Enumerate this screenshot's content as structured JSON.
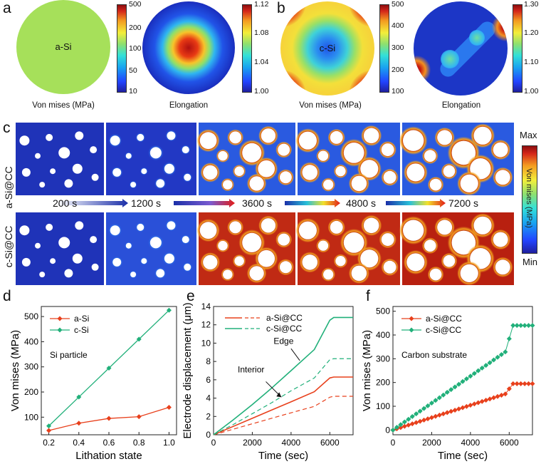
{
  "panel_labels": {
    "a": "a",
    "b": "b",
    "c": "c",
    "d": "d",
    "e": "e",
    "f": "f"
  },
  "panel_a": {
    "circle_label": "a-Si",
    "left_caption": "Von mises (MPa)",
    "right_caption": "Elongation",
    "left_ticks": [
      "500",
      "200",
      "100",
      "50",
      "10"
    ],
    "right_ticks": [
      "1.12",
      "1.08",
      "1.04",
      "1.00"
    ]
  },
  "panel_b": {
    "circle_label": "c-Si",
    "left_caption": "Von mises (MPa)",
    "right_caption": "Elongation",
    "left_ticks": [
      "500",
      "400",
      "300",
      "200",
      "100"
    ],
    "right_ticks": [
      "1.30",
      "1.20",
      "1.10",
      "1.00"
    ]
  },
  "panel_c": {
    "row_labels": [
      "a-Si@CC",
      "c-Si@CC"
    ],
    "times": [
      "200 s",
      "1200 s",
      "3600 s",
      "4800 s",
      "7200 s"
    ],
    "colorbar_max": "Max",
    "colorbar_min": "Min",
    "colorbar_label": "Von mises (MPa)"
  },
  "chart_data": [
    {
      "type": "line",
      "panel": "d",
      "annotation": "Si particle",
      "xlabel": "Lithation state",
      "ylabel": "Von mises (MPa)",
      "xlim": [
        0.15,
        1.05
      ],
      "ylim": [
        30,
        540
      ],
      "xticks": [
        "0.2",
        "0.4",
        "0.6",
        "0.8",
        "1.0"
      ],
      "yticks": [
        "100",
        "200",
        "300",
        "400",
        "500"
      ],
      "x": [
        0.2,
        0.4,
        0.6,
        0.8,
        1.0
      ],
      "series": [
        {
          "name": "a-Si",
          "color": "#e8401c",
          "marker": "diamond",
          "values": [
            47,
            76,
            95,
            102,
            139
          ]
        },
        {
          "name": "c-Si",
          "color": "#21b07a",
          "marker": "diamond",
          "values": [
            65,
            180,
            295,
            410,
            525
          ]
        }
      ],
      "legend": "top-left"
    },
    {
      "type": "line",
      "panel": "e",
      "annotations": [
        "Edge",
        "Interior"
      ],
      "xlabel": "Time (sec)",
      "ylabel": "Electrode displacement (μm)",
      "xlim": [
        0,
        7200
      ],
      "ylim": [
        0,
        14
      ],
      "xticks": [
        "0",
        "2000",
        "4000",
        "6000"
      ],
      "yticks": [
        "0",
        "2",
        "4",
        "6",
        "8",
        "10",
        "12",
        "14"
      ],
      "series": [
        {
          "name": "a-Si@CC",
          "color": "#e8401c",
          "style": "solid",
          "x": [
            0,
            1000,
            2000,
            3000,
            4000,
            5200,
            6000,
            6200,
            7200
          ],
          "values": [
            0,
            0.9,
            1.8,
            2.7,
            3.6,
            4.7,
            6.2,
            6.3,
            6.3
          ]
        },
        {
          "name": "a-Si@CC interior",
          "color": "#e8401c",
          "style": "dashed",
          "x": [
            0,
            1000,
            2000,
            3000,
            4000,
            5200,
            6000,
            6200,
            7200
          ],
          "values": [
            0,
            0.6,
            1.2,
            1.8,
            2.4,
            3.1,
            4.1,
            4.2,
            4.2
          ]
        },
        {
          "name": "c-Si@CC",
          "color": "#21b07a",
          "style": "solid",
          "x": [
            0,
            1000,
            2000,
            3000,
            4000,
            5200,
            6000,
            6200,
            7200
          ],
          "values": [
            0,
            1.6,
            3.3,
            5.1,
            7.0,
            9.3,
            12.5,
            12.8,
            12.8
          ]
        },
        {
          "name": "c-Si@CC interior",
          "color": "#21b07a",
          "style": "dashed",
          "x": [
            0,
            1000,
            2000,
            3000,
            4000,
            5200,
            6000,
            6200,
            7200
          ],
          "values": [
            0,
            1.1,
            2.3,
            3.5,
            4.8,
            6.2,
            8.2,
            8.3,
            8.3
          ]
        }
      ],
      "legend_entries": [
        "a-Si@CC",
        "c-Si@CC"
      ],
      "legend": "top-right"
    },
    {
      "type": "scatter",
      "panel": "f",
      "annotation": "Carbon substrate",
      "xlabel": "Time (sec)",
      "ylabel": "Von mises (MPa)",
      "xlim": [
        0,
        7200
      ],
      "ylim": [
        -20,
        520
      ],
      "xticks": [
        "0",
        "2000",
        "4000",
        "6000"
      ],
      "yticks": [
        "0",
        "100",
        "200",
        "300",
        "400",
        "500"
      ],
      "series": [
        {
          "name": "a-Si@CC",
          "color": "#e8401c",
          "marker": "diamond",
          "slope": 0.02615,
          "plateau": 195
        },
        {
          "name": "c-Si@CC",
          "color": "#21b07a",
          "marker": "diamond",
          "slope": 0.0567,
          "plateau": 440
        }
      ],
      "x_step": 200,
      "x_knee": 5800,
      "legend": "top-left"
    }
  ]
}
